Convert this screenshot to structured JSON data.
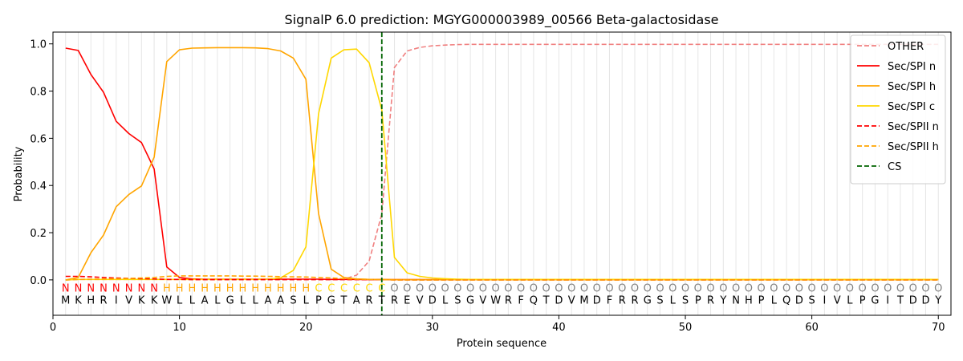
{
  "chart_data": {
    "type": "line",
    "title": "SignalP 6.0 prediction: MGYG000003989_00566 Beta-galactosidase",
    "xlabel": "Protein sequence",
    "ylabel": "Probability",
    "xlim": [
      0,
      71
    ],
    "ylim": [
      -0.15,
      1.05
    ],
    "xticks": [
      "0",
      "10",
      "20",
      "30",
      "40",
      "50",
      "60",
      "70"
    ],
    "yticks": [
      "0.0",
      "0.2",
      "0.4",
      "0.6",
      "0.8",
      "1.0"
    ],
    "legend_position": "top-right",
    "residues": [
      "M",
      "K",
      "H",
      "R",
      "I",
      "V",
      "K",
      "K",
      "W",
      "L",
      "L",
      "A",
      "L",
      "G",
      "L",
      "L",
      "A",
      "A",
      "S",
      "L",
      "P",
      "G",
      "T",
      "A",
      "R",
      "T",
      "R",
      "E",
      "V",
      "D",
      "L",
      "S",
      "G",
      "V",
      "W",
      "R",
      "F",
      "Q",
      "T",
      "D",
      "V",
      "M",
      "D",
      "F",
      "R",
      "R",
      "G",
      "S",
      "L",
      "S",
      "P",
      "R",
      "Y",
      "N",
      "H",
      "P",
      "L",
      "Q",
      "D",
      "S",
      "I",
      "V",
      "L",
      "P",
      "G",
      "I",
      "T",
      "D",
      "D",
      "Y"
    ],
    "region_labels": [
      "N",
      "N",
      "N",
      "N",
      "N",
      "N",
      "N",
      "N",
      "H",
      "H",
      "H",
      "H",
      "H",
      "H",
      "H",
      "H",
      "H",
      "H",
      "H",
      "H",
      "C",
      "C",
      "C",
      "C",
      "C",
      "C",
      "O",
      "O",
      "O",
      "O",
      "O",
      "O",
      "O",
      "O",
      "O",
      "O",
      "O",
      "O",
      "O",
      "O",
      "O",
      "O",
      "O",
      "O",
      "O",
      "O",
      "O",
      "O",
      "O",
      "O",
      "O",
      "O",
      "O",
      "O",
      "O",
      "O",
      "O",
      "O",
      "O",
      "O",
      "O",
      "O",
      "O",
      "O",
      "O",
      "O",
      "O",
      "O",
      "O",
      "O"
    ],
    "region_colors": {
      "N": "#ff0000",
      "H": "#ffa500",
      "C": "#ffd700",
      "O": "#808080"
    },
    "cleavage_site": 26,
    "series": [
      {
        "name": "OTHER",
        "color": "#f08080",
        "style": "dashed",
        "values": [
          0.0,
          0.002,
          0.002,
          0.002,
          0.002,
          0.002,
          0.002,
          0.002,
          0.002,
          0.002,
          0.002,
          0.002,
          0.002,
          0.002,
          0.002,
          0.002,
          0.002,
          0.002,
          0.002,
          0.002,
          0.002,
          0.002,
          0.003,
          0.02,
          0.08,
          0.28,
          0.9,
          0.97,
          0.985,
          0.992,
          0.995,
          0.997,
          0.998,
          0.998,
          0.998,
          0.998,
          0.998,
          0.998,
          0.998,
          0.998,
          0.998,
          0.998,
          0.998,
          0.998,
          0.998,
          0.998,
          0.998,
          0.998,
          0.998,
          0.998,
          0.998,
          0.998,
          0.998,
          0.998,
          0.998,
          0.998,
          0.998,
          0.998,
          0.998,
          0.998,
          0.998,
          0.998,
          0.998,
          0.998,
          0.998,
          0.998,
          0.998,
          0.998,
          0.998,
          0.998
        ]
      },
      {
        "name": "Sec/SPI n",
        "color": "#ff0000",
        "style": "solid",
        "values": [
          0.982,
          0.972,
          0.87,
          0.795,
          0.672,
          0.62,
          0.582,
          0.47,
          0.055,
          0.01,
          0.004,
          0.003,
          0.003,
          0.003,
          0.003,
          0.003,
          0.003,
          0.003,
          0.003,
          0.003,
          0.003,
          0.002,
          0.002,
          0.002,
          0.001,
          0.001,
          0.001,
          0.001,
          0.001,
          0.001,
          0.001,
          0.001,
          0.001,
          0.001,
          0.001,
          0.001,
          0.001,
          0.001,
          0.001,
          0.001,
          0.001,
          0.001,
          0.001,
          0.001,
          0.001,
          0.001,
          0.001,
          0.001,
          0.001,
          0.001,
          0.001,
          0.001,
          0.001,
          0.001,
          0.001,
          0.001,
          0.001,
          0.001,
          0.001,
          0.001,
          0.001,
          0.001,
          0.001,
          0.001,
          0.001,
          0.001,
          0.001,
          0.001,
          0.001,
          0.001
        ]
      },
      {
        "name": "Sec/SPI h",
        "color": "#ffa500",
        "style": "solid",
        "values": [
          0.0,
          0.01,
          0.115,
          0.19,
          0.31,
          0.362,
          0.398,
          0.52,
          0.925,
          0.975,
          0.982,
          0.983,
          0.984,
          0.984,
          0.984,
          0.983,
          0.98,
          0.97,
          0.94,
          0.85,
          0.28,
          0.045,
          0.01,
          0.004,
          0.002,
          0.002,
          0.001,
          0.001,
          0.001,
          0.001,
          0.001,
          0.001,
          0.001,
          0.001,
          0.001,
          0.001,
          0.001,
          0.001,
          0.001,
          0.001,
          0.001,
          0.001,
          0.001,
          0.001,
          0.001,
          0.001,
          0.001,
          0.001,
          0.001,
          0.001,
          0.001,
          0.001,
          0.001,
          0.001,
          0.001,
          0.001,
          0.001,
          0.001,
          0.001,
          0.001,
          0.001,
          0.001,
          0.001,
          0.001,
          0.001,
          0.001,
          0.001,
          0.001,
          0.001,
          0.001
        ]
      },
      {
        "name": "Sec/SPI c",
        "color": "#ffd700",
        "style": "solid",
        "values": [
          0.0,
          0.002,
          0.002,
          0.002,
          0.002,
          0.002,
          0.002,
          0.002,
          0.002,
          0.002,
          0.002,
          0.002,
          0.002,
          0.002,
          0.002,
          0.002,
          0.003,
          0.008,
          0.04,
          0.14,
          0.705,
          0.94,
          0.975,
          0.978,
          0.92,
          0.72,
          0.095,
          0.03,
          0.015,
          0.008,
          0.005,
          0.003,
          0.002,
          0.002,
          0.002,
          0.002,
          0.002,
          0.002,
          0.002,
          0.002,
          0.002,
          0.002,
          0.002,
          0.002,
          0.002,
          0.002,
          0.002,
          0.002,
          0.002,
          0.002,
          0.002,
          0.002,
          0.002,
          0.002,
          0.002,
          0.002,
          0.002,
          0.002,
          0.002,
          0.002,
          0.002,
          0.002,
          0.002,
          0.002,
          0.002,
          0.002,
          0.002,
          0.002,
          0.002,
          0.002
        ]
      },
      {
        "name": "Sec/SPII n",
        "color": "#ff0000",
        "style": "dashed",
        "values": [
          0.015,
          0.015,
          0.013,
          0.01,
          0.008,
          0.006,
          0.005,
          0.004,
          0.002,
          0.002,
          0.001,
          0.001,
          0.001,
          0.001,
          0.001,
          0.001,
          0.001,
          0.001,
          0.001,
          0.001,
          0.001,
          0.001,
          0.001,
          0.001,
          0.001,
          0.001,
          0.0,
          0.0,
          0.0,
          0.0,
          0.0,
          0.0,
          0.0,
          0.0,
          0.0,
          0.0,
          0.0,
          0.0,
          0.0,
          0.0,
          0.0,
          0.0,
          0.0,
          0.0,
          0.0,
          0.0,
          0.0,
          0.0,
          0.0,
          0.0,
          0.0,
          0.0,
          0.0,
          0.0,
          0.0,
          0.0,
          0.0,
          0.0,
          0.0,
          0.0,
          0.0,
          0.0,
          0.0,
          0.0,
          0.0,
          0.0,
          0.0,
          0.0,
          0.0,
          0.0
        ]
      },
      {
        "name": "Sec/SPII h",
        "color": "#ffa500",
        "style": "dashed",
        "values": [
          0.0,
          0.002,
          0.003,
          0.004,
          0.005,
          0.006,
          0.008,
          0.01,
          0.015,
          0.017,
          0.017,
          0.017,
          0.017,
          0.017,
          0.016,
          0.016,
          0.015,
          0.014,
          0.013,
          0.012,
          0.01,
          0.008,
          0.005,
          0.003,
          0.002,
          0.001,
          0.0,
          0.0,
          0.0,
          0.0,
          0.0,
          0.0,
          0.0,
          0.0,
          0.0,
          0.0,
          0.0,
          0.0,
          0.0,
          0.0,
          0.0,
          0.0,
          0.0,
          0.0,
          0.0,
          0.0,
          0.0,
          0.0,
          0.0,
          0.0,
          0.0,
          0.0,
          0.0,
          0.0,
          0.0,
          0.0,
          0.0,
          0.0,
          0.0,
          0.0,
          0.0,
          0.0,
          0.0,
          0.0,
          0.0,
          0.0,
          0.0,
          0.0,
          0.0,
          0.0
        ]
      }
    ],
    "legend": [
      {
        "name": "OTHER",
        "color": "#f08080",
        "style": "dashed"
      },
      {
        "name": "Sec/SPI n",
        "color": "#ff0000",
        "style": "solid"
      },
      {
        "name": "Sec/SPI h",
        "color": "#ffa500",
        "style": "solid"
      },
      {
        "name": "Sec/SPI c",
        "color": "#ffd700",
        "style": "solid"
      },
      {
        "name": "Sec/SPII n",
        "color": "#ff0000",
        "style": "dashed"
      },
      {
        "name": "Sec/SPII h",
        "color": "#ffa500",
        "style": "dashed"
      },
      {
        "name": "CS",
        "color": "#006400",
        "style": "dashed"
      }
    ]
  }
}
